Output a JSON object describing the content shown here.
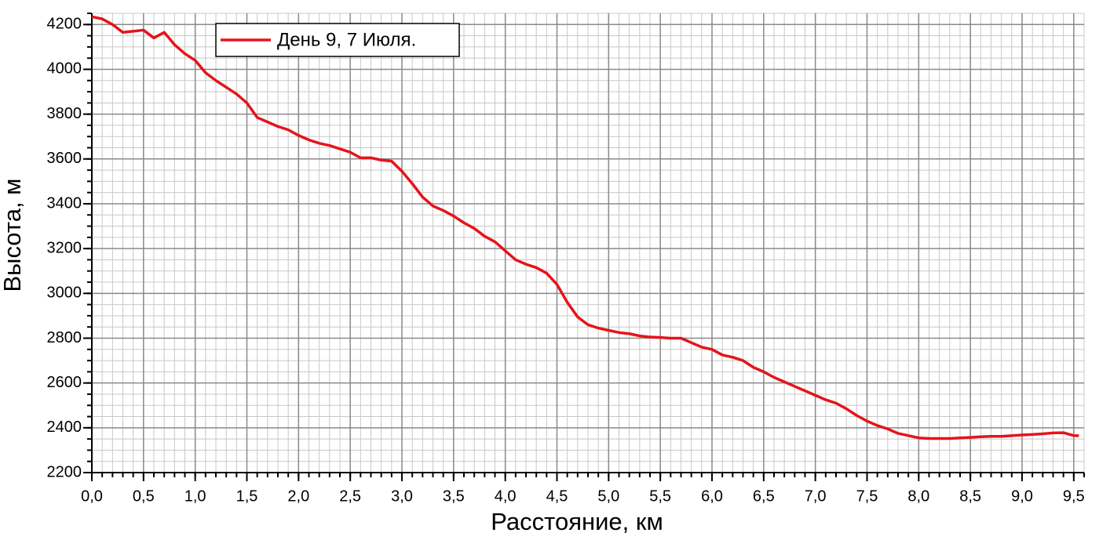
{
  "chart_data": {
    "type": "line",
    "xlabel": "Расстояние, км",
    "ylabel": "Высота, м",
    "x": [
      0,
      0.1,
      0.2,
      0.3,
      0.4,
      0.5,
      0.6,
      0.7,
      0.8,
      0.9,
      1.0,
      1.1,
      1.2,
      1.3,
      1.4,
      1.5,
      1.6,
      1.7,
      1.8,
      1.9,
      2.0,
      2.1,
      2.2,
      2.3,
      2.4,
      2.5,
      2.6,
      2.7,
      2.8,
      2.9,
      3.0,
      3.1,
      3.2,
      3.3,
      3.4,
      3.5,
      3.6,
      3.7,
      3.8,
      3.9,
      4.0,
      4.1,
      4.2,
      4.3,
      4.4,
      4.5,
      4.6,
      4.7,
      4.8,
      4.9,
      5.0,
      5.1,
      5.2,
      5.3,
      5.4,
      5.5,
      5.6,
      5.7,
      5.8,
      5.9,
      6.0,
      6.1,
      6.2,
      6.3,
      6.4,
      6.5,
      6.6,
      6.7,
      6.8,
      6.9,
      7.0,
      7.1,
      7.2,
      7.3,
      7.4,
      7.5,
      7.6,
      7.7,
      7.8,
      7.9,
      8.0,
      8.1,
      8.2,
      8.3,
      8.4,
      8.5,
      8.6,
      8.7,
      8.8,
      8.9,
      9.0,
      9.1,
      9.2,
      9.3,
      9.4,
      9.5,
      9.55
    ],
    "series": [
      {
        "name": "День 9, 7 Июля.",
        "color": "#e5141b",
        "values": [
          4235,
          4225,
          4200,
          4165,
          4170,
          4175,
          4140,
          4165,
          4110,
          4070,
          4040,
          3985,
          3950,
          3920,
          3890,
          3850,
          3785,
          3765,
          3745,
          3730,
          3705,
          3685,
          3670,
          3660,
          3645,
          3630,
          3605,
          3605,
          3595,
          3590,
          3545,
          3490,
          3430,
          3390,
          3370,
          3345,
          3315,
          3290,
          3255,
          3230,
          3190,
          3150,
          3130,
          3115,
          3090,
          3040,
          2960,
          2895,
          2860,
          2845,
          2835,
          2825,
          2820,
          2810,
          2805,
          2803,
          2800,
          2800,
          2780,
          2760,
          2750,
          2725,
          2715,
          2700,
          2670,
          2650,
          2625,
          2605,
          2585,
          2565,
          2545,
          2525,
          2510,
          2485,
          2455,
          2430,
          2410,
          2395,
          2375,
          2365,
          2355,
          2352,
          2352,
          2352,
          2355,
          2357,
          2360,
          2362,
          2362,
          2365,
          2368,
          2370,
          2373,
          2377,
          2378,
          2365,
          2365
        ]
      }
    ],
    "xlim": [
      0,
      9.6
    ],
    "ylim": [
      2200,
      4250
    ],
    "xticks": [
      {
        "value": 0,
        "label": "0,0"
      },
      {
        "value": 0.5,
        "label": "0,5"
      },
      {
        "value": 1,
        "label": "1,0"
      },
      {
        "value": 1.5,
        "label": "1,5"
      },
      {
        "value": 2,
        "label": "2,0"
      },
      {
        "value": 2.5,
        "label": "2,5"
      },
      {
        "value": 3,
        "label": "3,0"
      },
      {
        "value": 3.5,
        "label": "3,5"
      },
      {
        "value": 4,
        "label": "4,0"
      },
      {
        "value": 4.5,
        "label": "4,5"
      },
      {
        "value": 5,
        "label": "5,0"
      },
      {
        "value": 5.5,
        "label": "5,5"
      },
      {
        "value": 6,
        "label": "6,0"
      },
      {
        "value": 6.5,
        "label": "6,5"
      },
      {
        "value": 7,
        "label": "7,0"
      },
      {
        "value": 7.5,
        "label": "7,5"
      },
      {
        "value": 8,
        "label": "8,0"
      },
      {
        "value": 8.5,
        "label": "8,5"
      },
      {
        "value": 9,
        "label": "9,0"
      },
      {
        "value": 9.5,
        "label": "9,5"
      }
    ],
    "yticks": [
      2200,
      2400,
      2600,
      2800,
      3000,
      3200,
      3400,
      3600,
      3800,
      4000,
      4200
    ],
    "grid": true,
    "legend": "upper left"
  }
}
